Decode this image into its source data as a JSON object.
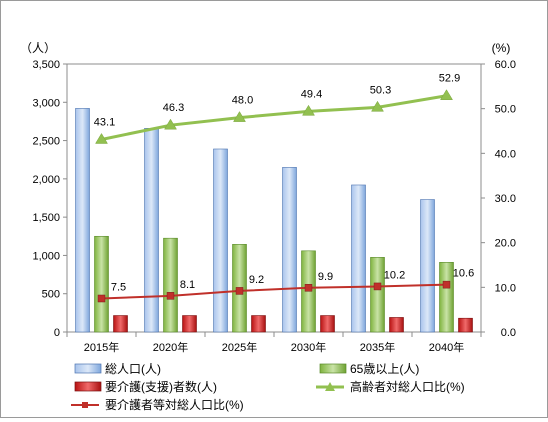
{
  "chart_data": {
    "type": "bar",
    "categories": [
      "2015年",
      "2020年",
      "2025年",
      "2030年",
      "2035年",
      "2040年"
    ],
    "series": [
      {
        "name": "総人口(人)",
        "kind": "bar",
        "axis": "left",
        "values": [
          2920,
          2660,
          2390,
          2150,
          1920,
          1730
        ],
        "color": "#7ea6dc"
      },
      {
        "name": "65歳以上(人)",
        "kind": "bar",
        "axis": "left",
        "values": [
          1250,
          1225,
          1145,
          1060,
          975,
          910
        ],
        "color": "#8cbf4e"
      },
      {
        "name": "要介護(支援)者数(人)",
        "kind": "bar",
        "axis": "left",
        "values": [
          215,
          215,
          215,
          215,
          190,
          180
        ],
        "color": "#e02020"
      },
      {
        "name": "高齢者対総人口比(%)",
        "kind": "line",
        "axis": "right",
        "values": [
          43.1,
          46.3,
          48.0,
          49.4,
          50.3,
          52.9
        ],
        "labels": [
          "43.1",
          "46.3",
          "48.0",
          "49.4",
          "50.3",
          "52.9"
        ],
        "color": "#92c050",
        "marker": "triangle"
      },
      {
        "name": "要介護者等対総人口比(%)",
        "kind": "line",
        "axis": "right",
        "values": [
          7.5,
          8.1,
          9.2,
          9.9,
          10.2,
          10.6
        ],
        "labels": [
          "7.5",
          "8.1",
          "9.2",
          "9.9",
          "10.2",
          "10.6"
        ],
        "color": "#c0302a",
        "marker": "square"
      }
    ],
    "left_axis": {
      "unit": "（人）",
      "ylim": [
        0,
        3500
      ],
      "ticks": [
        "0",
        "500",
        "1,000",
        "1,500",
        "2,000",
        "2,500",
        "3,000",
        "3,500"
      ]
    },
    "right_axis": {
      "unit": "(%)",
      "ylim": [
        0,
        60
      ],
      "ticks": [
        "0.0",
        "10.0",
        "20.0",
        "30.0",
        "40.0",
        "50.0",
        "60.0"
      ]
    },
    "grid": false,
    "legend": "bottom"
  }
}
